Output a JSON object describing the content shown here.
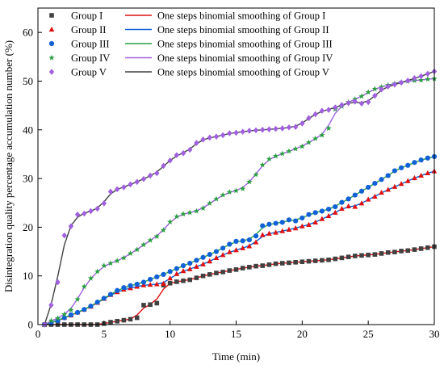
{
  "chart_data": {
    "type": "line",
    "xlabel": "Time (min)",
    "ylabel": "Disintegration quality percentage accumulation number (%)",
    "xlim": [
      0,
      30
    ],
    "ylim": [
      0,
      65
    ],
    "xticks": [
      0,
      5,
      10,
      15,
      20,
      25,
      30
    ],
    "yticks": [
      0,
      10,
      20,
      30,
      40,
      50,
      60
    ],
    "grid": false,
    "legend_position": "top-left",
    "series": [
      {
        "name": "Group I",
        "marker": "square",
        "color": "#404040",
        "x": [
          0.5,
          1,
          1.5,
          2,
          2.5,
          3,
          3.5,
          4,
          4.5,
          5,
          5.5,
          6,
          6.5,
          7,
          7.5,
          8,
          8.5,
          9,
          9.5,
          10,
          10.5,
          11,
          11.5,
          12,
          12.5,
          13,
          13.5,
          14,
          14.5,
          15,
          15.5,
          16,
          16.5,
          17,
          17.5,
          18,
          18.5,
          19,
          19.5,
          20,
          20.5,
          21,
          21.5,
          22,
          22.5,
          23,
          23.5,
          24,
          24.5,
          25,
          25.5,
          26,
          26.5,
          27,
          27.5,
          28,
          28.5,
          29,
          29.5,
          30
        ],
        "y": [
          0,
          0,
          0,
          0,
          0,
          0,
          0,
          0,
          0,
          0.2,
          0.5,
          0.7,
          0.9,
          1.1,
          1.4,
          4,
          4.1,
          4.4,
          8.1,
          8.5,
          8.8,
          9,
          9.2,
          9.6,
          10,
          10.3,
          10.6,
          10.8,
          11.1,
          11.3,
          11.6,
          11.8,
          12,
          12.1,
          12.3,
          12.5,
          12.6,
          12.7,
          12.8,
          12.9,
          13,
          13.1,
          13.2,
          13.3,
          13.5,
          13.7,
          13.9,
          14.1,
          14.2,
          14.3,
          14.4,
          14.6,
          14.8,
          14.9,
          15.1,
          15.2,
          15.4,
          15.6,
          15.8,
          16
        ]
      },
      {
        "name": "Group II",
        "marker": "triangle",
        "color": "#e01010",
        "x": [
          0.5,
          1,
          1.5,
          2,
          2.5,
          3,
          3.5,
          4,
          4.5,
          5,
          5.5,
          6,
          6.5,
          7,
          7.5,
          8,
          8.5,
          9,
          9.5,
          10,
          10.5,
          11,
          11.5,
          12,
          12.5,
          13,
          13.5,
          14,
          14.5,
          15,
          15.5,
          16,
          16.5,
          17,
          17.5,
          18,
          18.5,
          19,
          19.5,
          20,
          20.5,
          21,
          21.5,
          22,
          22.5,
          23,
          23.5,
          24,
          24.5,
          25,
          25.5,
          26,
          26.5,
          27,
          27.5,
          28,
          28.5,
          29,
          29.5,
          30
        ],
        "y": [
          0,
          0.4,
          0.9,
          1.4,
          1.9,
          2.5,
          3.1,
          3.7,
          4.5,
          5.3,
          6.1,
          6.7,
          7.2,
          7.5,
          7.8,
          8.1,
          8.2,
          8.3,
          8.4,
          9.5,
          10.4,
          11,
          11.4,
          11.9,
          12.4,
          13,
          13.7,
          14.3,
          14.9,
          15.3,
          15.7,
          16.1,
          16.9,
          18.4,
          18.7,
          18.9,
          19.2,
          19.5,
          19.8,
          20.2,
          20.5,
          21,
          21.7,
          22.3,
          23,
          23.8,
          24.3,
          24.2,
          24.9,
          25.7,
          26.3,
          27.1,
          27.7,
          28.3,
          28.9,
          29.5,
          30.1,
          30.6,
          31.1,
          31.5
        ]
      },
      {
        "name": "Group III",
        "marker": "circle",
        "color": "#1060d8",
        "x": [
          0.5,
          1,
          1.5,
          2,
          2.5,
          3,
          3.5,
          4,
          4.5,
          5,
          5.5,
          6,
          6.5,
          7,
          7.5,
          8,
          8.5,
          9,
          9.5,
          10,
          10.5,
          11,
          11.5,
          12,
          12.5,
          13,
          13.5,
          14,
          14.5,
          15,
          15.5,
          16,
          16.5,
          17,
          17.5,
          18,
          18.5,
          19,
          19.5,
          20,
          20.5,
          21,
          21.5,
          22,
          22.5,
          23,
          23.5,
          24,
          24.5,
          25,
          25.5,
          26,
          26.5,
          27,
          27.5,
          28,
          28.5,
          29,
          29.5,
          30
        ],
        "y": [
          0,
          0.3,
          0.8,
          1.4,
          2,
          2.5,
          3.1,
          3.8,
          4.6,
          5.4,
          6.2,
          7,
          7.6,
          8,
          8.3,
          8.7,
          9.3,
          9.8,
          10.3,
          10.9,
          11.5,
          12.1,
          12.6,
          13.2,
          13.8,
          14.4,
          15,
          15.7,
          16.5,
          17.1,
          17.2,
          17.4,
          18.2,
          20.3,
          20.6,
          20.8,
          21,
          21.5,
          21.3,
          21.9,
          22.6,
          23,
          23.3,
          23.7,
          24.2,
          25.1,
          25.8,
          26.6,
          27.4,
          28.2,
          29,
          29.8,
          30.6,
          31.6,
          32.2,
          32.7,
          33.3,
          33.8,
          34.2,
          34.5
        ]
      },
      {
        "name": "Group IV",
        "marker": "star",
        "color": "#28a040",
        "x": [
          0.5,
          1,
          1.5,
          2,
          2.5,
          3,
          3.5,
          4,
          4.5,
          5,
          5.5,
          6,
          6.5,
          7,
          7.5,
          8,
          8.5,
          9,
          9.5,
          10,
          10.5,
          11,
          11.5,
          12,
          12.5,
          13,
          13.5,
          14,
          14.5,
          15,
          15.5,
          16,
          16.5,
          17,
          17.5,
          18,
          18.5,
          19,
          19.5,
          20,
          20.5,
          21,
          21.5,
          22,
          22.5,
          23,
          23.5,
          24,
          24.5,
          25,
          25.5,
          26,
          26.5,
          27,
          27.5,
          28,
          28.5,
          29,
          29.5,
          30
        ],
        "y": [
          0,
          0.8,
          1.3,
          2.1,
          3,
          5.2,
          7.8,
          9.5,
          10.9,
          12.1,
          12.6,
          13.1,
          13.7,
          14.6,
          15.4,
          16.4,
          17.3,
          18.1,
          19.4,
          21.1,
          22.2,
          22.7,
          23,
          23.3,
          23.9,
          24.9,
          25.8,
          26.6,
          27.2,
          27.5,
          27.9,
          29.3,
          30.8,
          32.8,
          34,
          34.6,
          35.1,
          35.6,
          36.1,
          36.6,
          37.4,
          38.2,
          38.9,
          40.3,
          44.2,
          44.8,
          45.7,
          46.3,
          46.9,
          47.7,
          48.4,
          48.8,
          49.2,
          49.5,
          49.8,
          50,
          50.1,
          50.2,
          50.4,
          50.5
        ]
      },
      {
        "name": "Group V",
        "marker": "diamond",
        "color": "#a060e0",
        "x": [
          0.5,
          1,
          1.5,
          2,
          2.5,
          3,
          3.5,
          4,
          4.5,
          5,
          5.5,
          6,
          6.5,
          7,
          7.5,
          8,
          8.5,
          9,
          9.5,
          10,
          10.5,
          11,
          11.5,
          12,
          12.5,
          13,
          13.5,
          14,
          14.5,
          15,
          15.5,
          16,
          16.5,
          17,
          17.5,
          18,
          18.5,
          19,
          19.5,
          20,
          20.5,
          21,
          21.5,
          22,
          22.5,
          23,
          23.5,
          24,
          24.5,
          25,
          25.5,
          26,
          26.5,
          27,
          27.5,
          28,
          28.5,
          29,
          29.5,
          30
        ],
        "y": [
          0,
          4,
          8.7,
          18.3,
          20.2,
          22.6,
          22.8,
          23.3,
          23.8,
          24.9,
          27.3,
          27.8,
          28.2,
          28.8,
          29.3,
          29.9,
          30.6,
          31.1,
          32.6,
          33.7,
          34.8,
          35.2,
          35.9,
          37.3,
          38,
          38.4,
          38.6,
          38.9,
          39.3,
          39.4,
          39.6,
          39.8,
          39.9,
          40,
          40.1,
          40.2,
          40.3,
          40.5,
          40.6,
          41.3,
          42.4,
          43.2,
          43.9,
          44.1,
          44.6,
          45.1,
          45.5,
          45.8,
          45.4,
          45.7,
          47,
          48.3,
          48.9,
          49.3,
          49.7,
          50.1,
          50.6,
          51,
          51.5,
          52
        ]
      }
    ],
    "legend": [
      {
        "label": "Group I",
        "marker": "square",
        "color": "#404040"
      },
      {
        "label": "One steps binomial smoothing of Group I",
        "line": "#e01010"
      },
      {
        "label": "Group II",
        "marker": "triangle",
        "color": "#e01010"
      },
      {
        "label": "One steps binomial smoothing of Group II",
        "line": "#1060d8"
      },
      {
        "label": "Group III",
        "marker": "circle",
        "color": "#1060d8"
      },
      {
        "label": "One steps binomial smoothing of Group III",
        "line": "#28a040"
      },
      {
        "label": "Group IV",
        "marker": "star",
        "color": "#28a040"
      },
      {
        "label": "One steps binomial smoothing of Group IV",
        "line": "#a060e0"
      },
      {
        "label": "Group V",
        "marker": "diamond",
        "color": "#a060e0"
      },
      {
        "label": "One steps binomial smoothing of Group V",
        "line": "#404040"
      }
    ]
  }
}
